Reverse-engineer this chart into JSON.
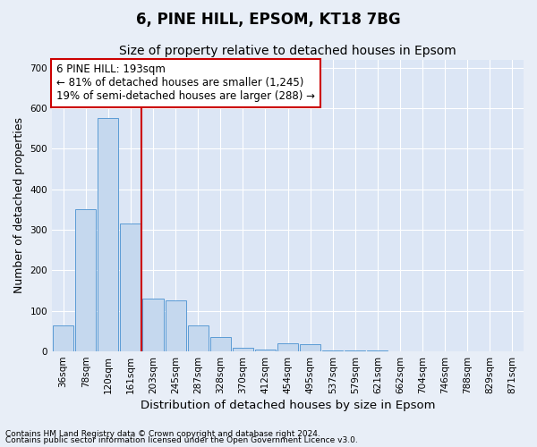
{
  "title": "6, PINE HILL, EPSOM, KT18 7BG",
  "subtitle": "Size of property relative to detached houses in Epsom",
  "xlabel": "Distribution of detached houses by size in Epsom",
  "ylabel": "Number of detached properties",
  "categories": [
    "36sqm",
    "78sqm",
    "120sqm",
    "161sqm",
    "203sqm",
    "245sqm",
    "287sqm",
    "328sqm",
    "370sqm",
    "412sqm",
    "454sqm",
    "495sqm",
    "537sqm",
    "579sqm",
    "621sqm",
    "662sqm",
    "704sqm",
    "746sqm",
    "788sqm",
    "829sqm",
    "871sqm"
  ],
  "values": [
    65,
    350,
    575,
    315,
    130,
    125,
    65,
    35,
    10,
    5,
    20,
    18,
    3,
    2,
    2,
    1,
    1,
    1,
    1,
    0,
    0
  ],
  "bar_color": "#c5d8ee",
  "bar_edge_color": "#5b9bd5",
  "vline_color": "#cc0000",
  "vline_x": 3.5,
  "annotation_text": "6 PINE HILL: 193sqm\n← 81% of detached houses are smaller (1,245)\n19% of semi-detached houses are larger (288) →",
  "annotation_box_facecolor": "#ffffff",
  "annotation_box_edgecolor": "#cc0000",
  "ylim": [
    0,
    720
  ],
  "yticks": [
    0,
    100,
    200,
    300,
    400,
    500,
    600,
    700
  ],
  "background_color": "#e8eef7",
  "plot_bg_color": "#dce6f5",
  "grid_color": "#ffffff",
  "footer1": "Contains HM Land Registry data © Crown copyright and database right 2024.",
  "footer2": "Contains public sector information licensed under the Open Government Licence v3.0.",
  "title_fontsize": 12,
  "subtitle_fontsize": 10,
  "tick_fontsize": 7.5,
  "ylabel_fontsize": 9,
  "xlabel_fontsize": 9.5,
  "annotation_fontsize": 8.5,
  "footer_fontsize": 6.5
}
